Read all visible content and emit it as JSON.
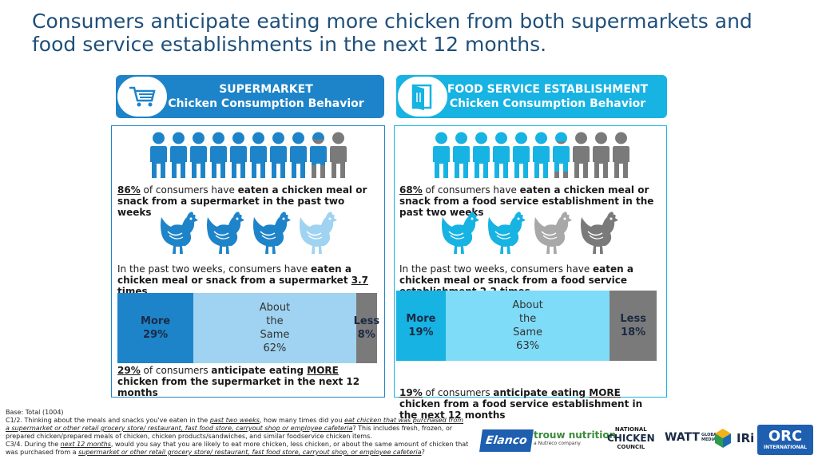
{
  "title": "Consumers anticipate eating more chicken from both supermarkets and food service establishments in the next 12 months.",
  "supermarket": {
    "header_line1": "SUPERMARKET",
    "header_line2": "Chicken Consumption Behavior",
    "icon": "shopping-cart-icon",
    "people_share": 0.86,
    "stat1_pct": "86%",
    "stat1_text": " of consumers have ",
    "stat1_bold": "eaten a chicken meal or snack from a supermarket in the past two weeks",
    "hens_count": 3.7,
    "stat2_pre": "In the past two weeks, consumers have ",
    "stat2_bold": "eaten a chicken meal or snack from a supermarket ",
    "stat2_value": "3.7 times",
    "bar": {
      "more_label": "More",
      "more_value": "29%",
      "same_label_1": "About",
      "same_label_2": "the",
      "same_label_3": "Same",
      "same_value": "62%",
      "less_label": "Less",
      "less_value": "8%",
      "more": 29,
      "same": 62,
      "less": 8
    },
    "stat3_pct": "29%",
    "stat3_text": " of consumers ",
    "stat3_bold1": "anticipate eating ",
    "stat3_more": "MORE",
    "stat3_bold2": " chicken from the supermarket in the next 12 months"
  },
  "foodservice": {
    "header_line1": "FOOD SERVICE ESTABLISHMENT",
    "header_line2": "Chicken Consumption Behavior",
    "icon": "restaurant-door-icon",
    "people_share": 0.68,
    "stat1_pct": "68%",
    "stat1_text": " of consumers have ",
    "stat1_bold": "eaten a chicken meal or snack from a food service establishment in the past two weeks",
    "hens_count": 2.2,
    "stat2_pre": "In the past two weeks, consumers have ",
    "stat2_bold": "eaten a chicken meal or snack from a food service establishment ",
    "stat2_value": "2.2 times",
    "bar": {
      "more_label": "More",
      "more_value": "19%",
      "same_label_1": "About",
      "same_label_2": "the",
      "same_label_3": "Same",
      "same_value": "63%",
      "less_label": "Less",
      "less_value": "18%",
      "more": 19,
      "same": 63,
      "less": 18
    },
    "stat3_pct": "19%",
    "stat3_text": " of consumers ",
    "stat3_bold1": "anticipate eating ",
    "stat3_more": "MORE",
    "stat3_bold2": " chicken from a food service establishment in the next 12 months"
  },
  "colors": {
    "sm_dark": "#1e84c9",
    "sm_light": "#9fd3f1",
    "fs_dark": "#16b3e3",
    "fs_light": "#7fdcf8",
    "gray": "#7a7a7a"
  },
  "notes": {
    "base": "Base: Total (1004)",
    "q1_a": "C1/2. Thinking about the meals and snacks you've eaten in the ",
    "q1_b": "past two weeks",
    "q1_c": ", how many times did you ",
    "q1_d": "eat chicken that was purchased from a supermarket or other retail grocery store/ restaurant, fast food store, carryout shop or employee cafeteria",
    "q1_e": "? This includes fresh, frozen, or prepared chicken/prepared meals of chicken, chicken products/sandwiches, and similar foodservice chicken items.",
    "q2_a": "C3/4. During the ",
    "q2_b": "next 12 months",
    "q2_c": ", would you say that you are likely to eat more chicken, less chicken, or about the same amount of chicken that was purchased from a ",
    "q2_d": "supermarket or other retail grocery store/ restaurant, fast food store, carryout shop, or employee cafeteria",
    "q2_e": "?"
  },
  "logos": {
    "elanco": "Elanco",
    "trouw": "trouw nutrition",
    "trouw_sub": "a Nutreco company",
    "ncc_1": "NATIONAL",
    "ncc_2": "CHICKEN",
    "ncc_3": "COUNCIL",
    "watt": "WATT",
    "watt_sub": "GLOBAL MEDIA",
    "iri": "IRi",
    "orc": "ORC",
    "orc_sub": "INTERNATIONAL"
  }
}
